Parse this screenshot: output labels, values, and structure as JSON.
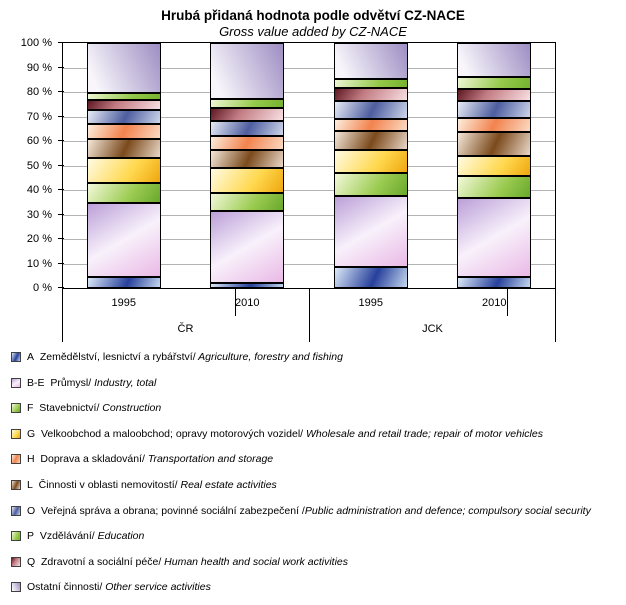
{
  "chart_data": {
    "type": "bar",
    "stacked": true,
    "unit": "%",
    "title": "Hrubá přidaná hodnota podle odvětví CZ-NACE",
    "subtitle": "Gross value added by CZ-NACE",
    "ylim": [
      0,
      100
    ],
    "grid": "horizontal-gray",
    "legend_position": "bottom",
    "groups": [
      "ČR",
      "JCK"
    ],
    "categories": [
      "1995",
      "2010",
      "1995",
      "2010"
    ],
    "ytick_labels": [
      "0 %",
      "10 %",
      "20 %",
      "30 %",
      "40 %",
      "50 %",
      "60 %",
      "70 %",
      "80 %",
      "90 %",
      "100 %"
    ],
    "series_note": "series listed in stack order, bottom to top; values are % of gross value added for bars ČR-1995, ČR-2010, JCK-1995, JCK-2010",
    "series": [
      {
        "id": "A",
        "code": "A",
        "name_cs": "Zemědělství, lesnictví a rybářství/",
        "name_en": " Agriculture, forestry and fishing",
        "values": [
          4.7,
          2.0,
          8.4,
          4.3
        ],
        "gradient": {
          "angle": 115,
          "stops": [
            [
              "#dce9f8",
              "0%"
            ],
            [
              "#27409b",
              "55%"
            ],
            [
              "#c6d9f0",
              "100%"
            ]
          ]
        }
      },
      {
        "id": "BE",
        "code": "B-E",
        "name_cs": "Průmysl/",
        "name_en": " Industry, total",
        "values": [
          30.0,
          29.5,
          29.0,
          32.6
        ],
        "gradient": {
          "angle": 150,
          "stops": [
            [
              "#bb9fd8",
              "0%"
            ],
            [
              "#f8f1fb",
              "50%"
            ],
            [
              "#eab9e6",
              "100%"
            ]
          ]
        }
      },
      {
        "id": "F",
        "code": "F",
        "name_cs": "Stavebnictví/",
        "name_en": " Construction",
        "values": [
          8.1,
          7.2,
          9.4,
          8.7
        ],
        "gradient": {
          "angle": 125,
          "stops": [
            [
              "#f3f9da",
              "0%"
            ],
            [
              "#9bcb51",
              "60%"
            ],
            [
              "#68a82a",
              "100%"
            ]
          ]
        }
      },
      {
        "id": "G",
        "code": "G",
        "name_cs": "Velkoobchod a maloobchod; opravy motorových vozidel/",
        "name_en": " Wholesale and retail trade; repair of motor vehicles",
        "values": [
          10.4,
          10.2,
          9.5,
          8.3
        ],
        "gradient": {
          "angle": 125,
          "stops": [
            [
              "#fffbe3",
              "0%"
            ],
            [
              "#ffd84e",
              "60%"
            ],
            [
              "#efa60e",
              "100%"
            ]
          ]
        }
      },
      {
        "id": "L",
        "code": "L",
        "name_cs": "Činnosti v oblasti nemovitostí/",
        "name_en": " Real estate activities",
        "values": [
          7.7,
          7.4,
          7.7,
          9.9
        ],
        "gradient": {
          "angle": 115,
          "stops": [
            [
              "#f4e7d9",
              "0%"
            ],
            [
              "#7b4a1c",
              "52%"
            ],
            [
              "#ead7c7",
              "100%"
            ]
          ]
        }
      },
      {
        "id": "H",
        "code": "H",
        "name_cs": "Doprava a skladování/",
        "name_en": " Transportation and storage",
        "values": [
          6.1,
          5.8,
          5.1,
          5.4
        ],
        "gradient": {
          "angle": 115,
          "stops": [
            [
              "#fdeede",
              "0%"
            ],
            [
              "#f2834e",
              "50%"
            ],
            [
              "#fbdac3",
              "100%"
            ]
          ]
        }
      },
      {
        "id": "O",
        "code": "O",
        "name_cs": "Veřejná správa a obrana; povinné sociální zabezpečení /",
        "name_en": "Public administration and defence; compulsory social security",
        "values": [
          5.8,
          6.2,
          7.4,
          7.3
        ],
        "gradient": {
          "angle": 115,
          "stops": [
            [
              "#e8ecf6",
              "0%"
            ],
            [
              "#4d5d9f",
              "52%"
            ],
            [
              "#cdd6eb",
              "100%"
            ]
          ]
        }
      },
      {
        "id": "Q",
        "code": "Q",
        "name_cs": "Zdravotní a sociální péče/",
        "name_en": " Human health and social work activities",
        "values": [
          4.0,
          5.2,
          5.0,
          4.9
        ],
        "gradient": {
          "angle": 125,
          "stops": [
            [
              "#5d1722",
              "0%"
            ],
            [
              "#c27c83",
              "40%"
            ],
            [
              "#f8e0e3",
              "100%"
            ]
          ]
        }
      },
      {
        "id": "P",
        "code": "P",
        "name_cs": "Vzdělávání/",
        "name_en": " Education",
        "values": [
          2.7,
          3.5,
          4.0,
          4.7
        ],
        "gradient": {
          "angle": 115,
          "stops": [
            [
              "#eff7d6",
              "0%"
            ],
            [
              "#95c94b",
              "60%"
            ],
            [
              "#75b12e",
              "100%"
            ]
          ]
        }
      },
      {
        "id": "OST",
        "code": "",
        "name_cs": "Ostatní činnosti/",
        "name_en": " Other service activities",
        "values": [
          20.5,
          23.0,
          14.5,
          13.9
        ],
        "gradient": {
          "angle": 245,
          "stops": [
            [
              "#9e8ec3",
              "0%"
            ],
            [
              "#f8f6fb",
              "88%"
            ]
          ]
        }
      }
    ],
    "legend_order": [
      "A",
      "BE",
      "F",
      "G",
      "H",
      "L",
      "O",
      "P",
      "Q",
      "OST"
    ]
  }
}
